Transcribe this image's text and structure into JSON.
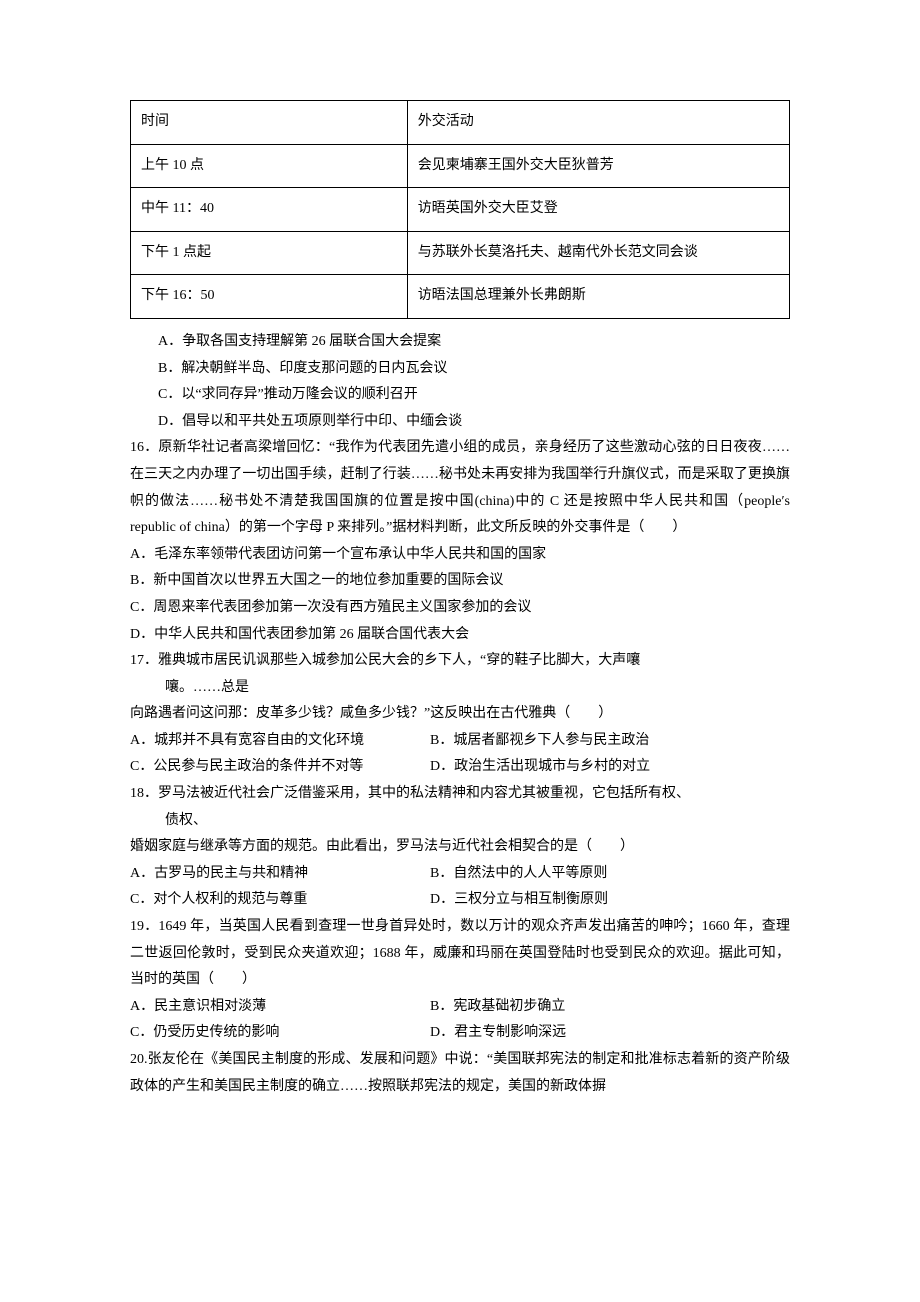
{
  "table": {
    "columns": [
      "时间",
      "外交活动"
    ],
    "rows": [
      [
        "上午 10 点",
        "会见柬埔寨王国外交大臣狄普芳"
      ],
      [
        "中午 11：40",
        "访晤英国外交大臣艾登"
      ],
      [
        "下午 1 点起",
        "与苏联外长莫洛托夫、越南代外长范文同会谈"
      ],
      [
        "下午 16：50",
        "访晤法国总理兼外长弗朗斯"
      ]
    ]
  },
  "q15_options": {
    "a": "A．争取各国支持理解第 26 届联合国大会提案",
    "b": "B．解决朝鲜半岛、印度支那问题的日内瓦会议",
    "c": "C．以“求同存异”推动万隆会议的顺利召开",
    "d": "D．倡导以和平共处五项原则举行中印、中缅会谈"
  },
  "q16": {
    "stem": "16．原新华社记者高梁增回忆：“我作为代表团先遣小组的成员，亲身经历了这些激动心弦的日日夜夜……在三天之内办理了一切出国手续，赶制了行装……秘书处未再安排为我国举行升旗仪式，而是采取了更换旗帜的做法……秘书处不清楚我国国旗的位置是按中国(china)中的 C 还是按照中华人民共和国（people′s　republic of china）的第一个字母 P 来排列。”据材料判断，此文所反映的外交事件是（　　）",
    "a": "A．毛泽东率领带代表团访问第一个宣布承认中华人民共和国的国家",
    "b": "B．新中国首次以世界五大国之一的地位参加重要的国际会议",
    "c": "C．周恩来率代表团参加第一次没有西方殖民主义国家参加的会议",
    "d": "D．中华人民共和国代表团参加第 26 届联合国代表大会"
  },
  "q17": {
    "line1": "17．雅典城市居民讥讽那些入城参加公民大会的乡下人，“穿的鞋子比脚大，大声嚷",
    "line2": "嚷。……总是",
    "line3": "向路遇者问这问那：皮革多少钱？咸鱼多少钱？”这反映出在古代雅典（　　）",
    "a": "A．城邦并不具有宽容自由的文化环境",
    "b": "B．城居者鄙视乡下人参与民主政治",
    "c": "C．公民参与民主政治的条件并不对等",
    "d": "D．政治生活出现城市与乡村的对立"
  },
  "q18": {
    "line1": "18．罗马法被近代社会广泛借鉴采用，其中的私法精神和内容尤其被重视，它包括所有权、",
    "line2": "债权、",
    "line3": "婚姻家庭与继承等方面的规范。由此看出，罗马法与近代社会相契合的是（　　）",
    "a": "A．古罗马的民主与共和精神",
    "b": "B．自然法中的人人平等原则",
    "c": "C．对个人权利的规范与尊重",
    "d": "D．三权分立与相互制衡原则"
  },
  "q19": {
    "stem": "19．1649 年，当英国人民看到查理一世身首异处时，数以万计的观众齐声发出痛苦的呻吟；1660 年，查理二世返回伦敦时，受到民众夹道欢迎；1688 年，威廉和玛丽在英国登陆时也受到民众的欢迎。据此可知，当时的英国（　　）",
    "a": "A．民主意识相对淡薄",
    "b": "B．宪政基础初步确立",
    "c": "C．仍受历史传统的影响",
    "d": "D．君主专制影响深远"
  },
  "q20": {
    "stem": "20.张友伦在《美国民主制度的形成、发展和问题》中说：“美国联邦宪法的制定和批准标志着新的资产阶级政体的产生和美国民主制度的确立……按照联邦宪法的规定，美国的新政体摒"
  }
}
